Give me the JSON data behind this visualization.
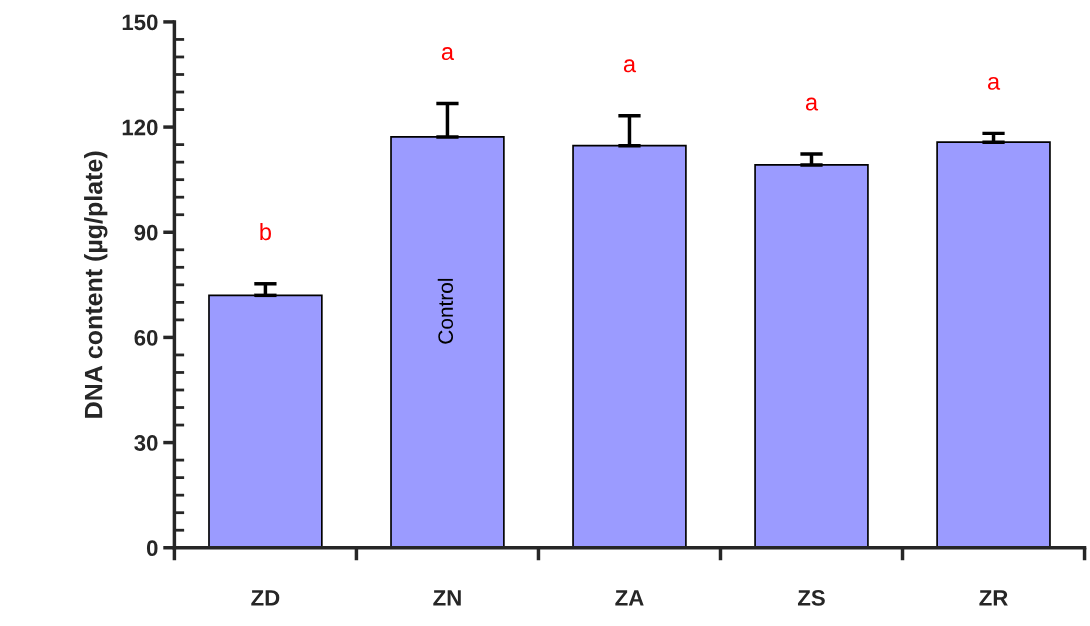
{
  "chart_data": {
    "type": "bar",
    "ylabel": "DNA content (µg/plate)",
    "categories": [
      "ZD",
      "ZN",
      "ZA",
      "ZS",
      "ZR"
    ],
    "values": [
      72,
      117.2,
      114.7,
      109.2,
      115.7
    ],
    "errors": [
      [
        72,
        75.3
      ],
      [
        117.2,
        126.7
      ],
      [
        114.7,
        123.2
      ],
      [
        109.2,
        112.3
      ],
      [
        115.7,
        118.2
      ]
    ],
    "color": "#9b9bff",
    "ylim": [
      0,
      150
    ],
    "yticks": [
      0,
      30,
      60,
      90,
      120,
      150
    ],
    "annotations": [
      "b",
      "a",
      "a",
      "a",
      "a",
      "Control"
    ],
    "grid": false,
    "legend": false
  }
}
